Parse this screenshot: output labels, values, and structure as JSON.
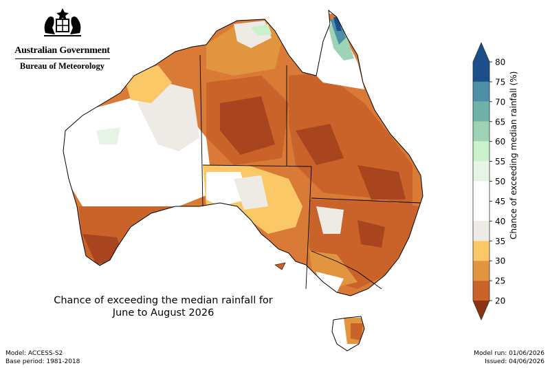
{
  "header": {
    "government": "Australian Government",
    "agency": "Bureau of Meteorology"
  },
  "map": {
    "title_line1": "Chance of exceeding the median rainfall for",
    "title_line2": "June to August 2026"
  },
  "legend": {
    "label": "Chance of exceeding median rainfall (%)",
    "ticks": [
      "20",
      "25",
      "30",
      "35",
      "40",
      "45",
      "50",
      "55",
      "60",
      "65",
      "70",
      "75",
      "80"
    ],
    "colors": [
      "#a8451e",
      "#c9632a",
      "#e2953f",
      "#fbc867",
      "#eeebe6",
      "#ffffff",
      "#ffffff",
      "#e6f4e6",
      "#c9f1cb",
      "#9fd3b5",
      "#6fb0a8",
      "#4d8fa6",
      "#1d4e8c"
    ]
  },
  "footer": {
    "model": "Model: ACCESS-S2",
    "base_period": "Base period: 1981-2018",
    "model_run": "Model run: 01/06/2026",
    "issued": "Issued: 04/06/2026"
  }
}
